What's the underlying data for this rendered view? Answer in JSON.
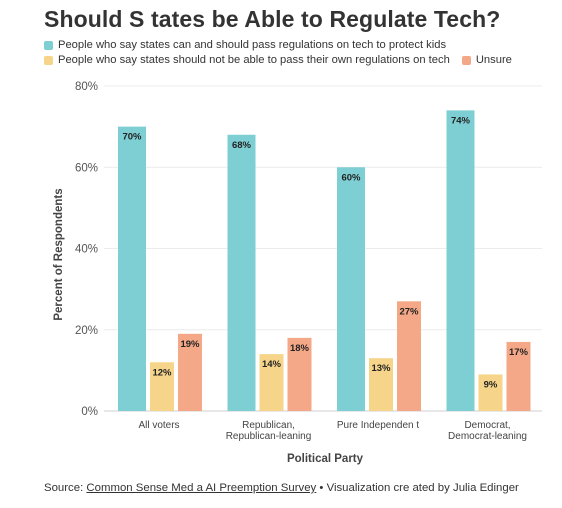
{
  "header": {
    "title": "Should S tates be Able to Regulate Tech?"
  },
  "legend": [
    {
      "label": "People who say  states can and should pass regulations on tech to protect kids",
      "color": "#7ecfd4"
    },
    {
      "label": "People who say  states should not be able to pass their own regulations on tech",
      "color": "#f6d58a"
    },
    {
      "label": "Unsure",
      "color": "#f5a887"
    }
  ],
  "footer": {
    "prefix": "Source: ",
    "link": "Common  Sense Med a AI Preemption Survey",
    "suffix": " • Visualization cre ated by Julia Edinger"
  },
  "chart_data": {
    "type": "bar",
    "title": "Should S tates be Able to Regulate Tech?",
    "xlabel": "Political Party",
    "ylabel": "Percent of Respondents",
    "ylim": [
      0,
      80
    ],
    "yticks": [
      "0%",
      "20%",
      "40%",
      "60%",
      "80%"
    ],
    "grid": true,
    "legend_position": "top",
    "categories": [
      [
        "All voters"
      ],
      [
        "Republican,",
        "Republican-leaning"
      ],
      [
        "Pure Independen t"
      ],
      [
        "Democrat,",
        "Democrat-leaning"
      ]
    ],
    "series": [
      {
        "name": "People who say  states can and should pass regulations on tech to protect kids",
        "color": "#7ecfd4",
        "values": [
          70,
          68,
          60,
          74
        ],
        "labels": [
          "70%",
          "68%",
          "60%",
          "74%"
        ]
      },
      {
        "name": "People who say  states should not be able to pass their own regulations on tech",
        "color": "#f6d58a",
        "values": [
          12,
          14,
          13,
          9
        ],
        "labels": [
          "12%",
          "14%",
          "13%",
          "9%"
        ]
      },
      {
        "name": "Unsure",
        "color": "#f5a887",
        "values": [
          19,
          18,
          27,
          17
        ],
        "labels": [
          "19%",
          "18%",
          "27%",
          "17%"
        ]
      }
    ]
  }
}
